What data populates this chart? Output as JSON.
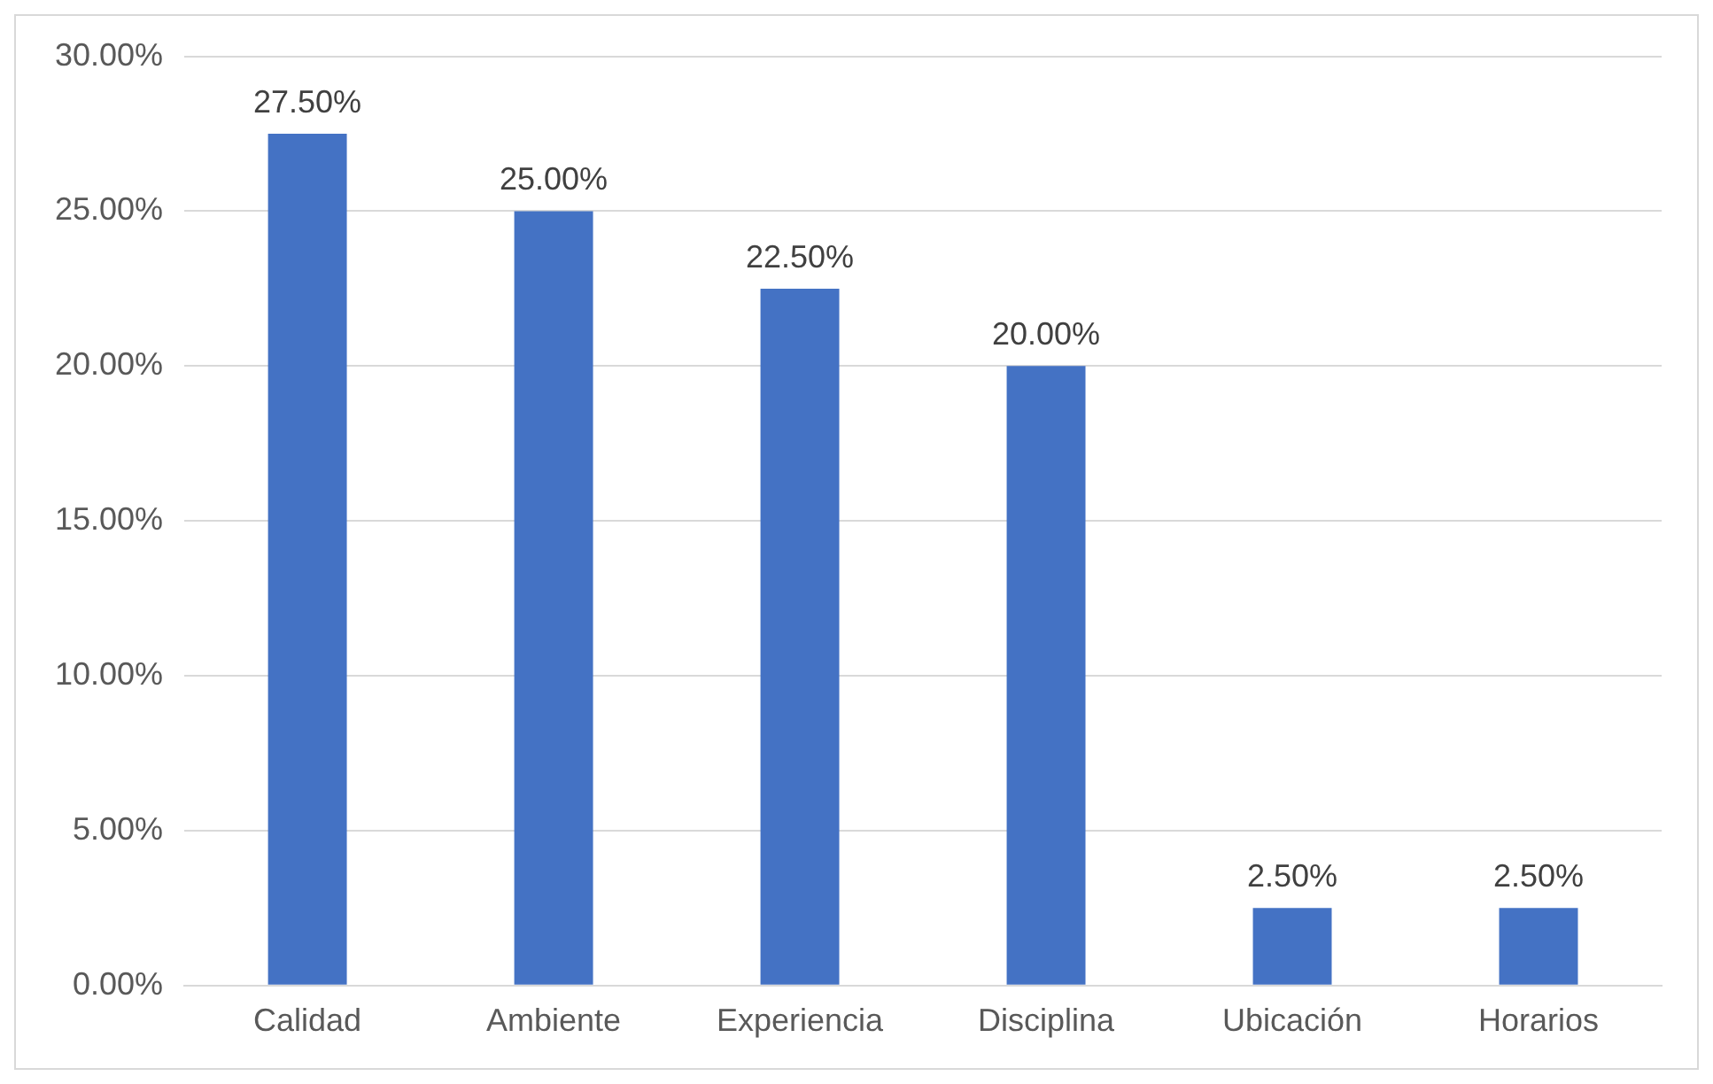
{
  "chart_data": {
    "type": "bar",
    "categories": [
      "Calidad",
      "Ambiente",
      "Experiencia",
      "Disciplina",
      "Ubicación",
      "Horarios"
    ],
    "values": [
      27.5,
      25,
      22.5,
      20,
      2.5,
      2.5
    ],
    "value_labels": [
      "27.50%",
      "25.00%",
      "22.50%",
      "20.00%",
      "2.50%",
      "2.50%"
    ],
    "color": "#4472c4",
    "ylim": [
      0,
      30
    ],
    "yticks": [
      {
        "value": 0,
        "label": "0.00%"
      },
      {
        "value": 5,
        "label": "5.00%"
      },
      {
        "value": 10,
        "label": "10.00%"
      },
      {
        "value": 15,
        "label": "15.00%"
      },
      {
        "value": 20,
        "label": "20.00%"
      },
      {
        "value": 25,
        "label": "25.00%"
      },
      {
        "value": 30,
        "label": "30.00%"
      }
    ],
    "grid": "y",
    "legend": false
  }
}
